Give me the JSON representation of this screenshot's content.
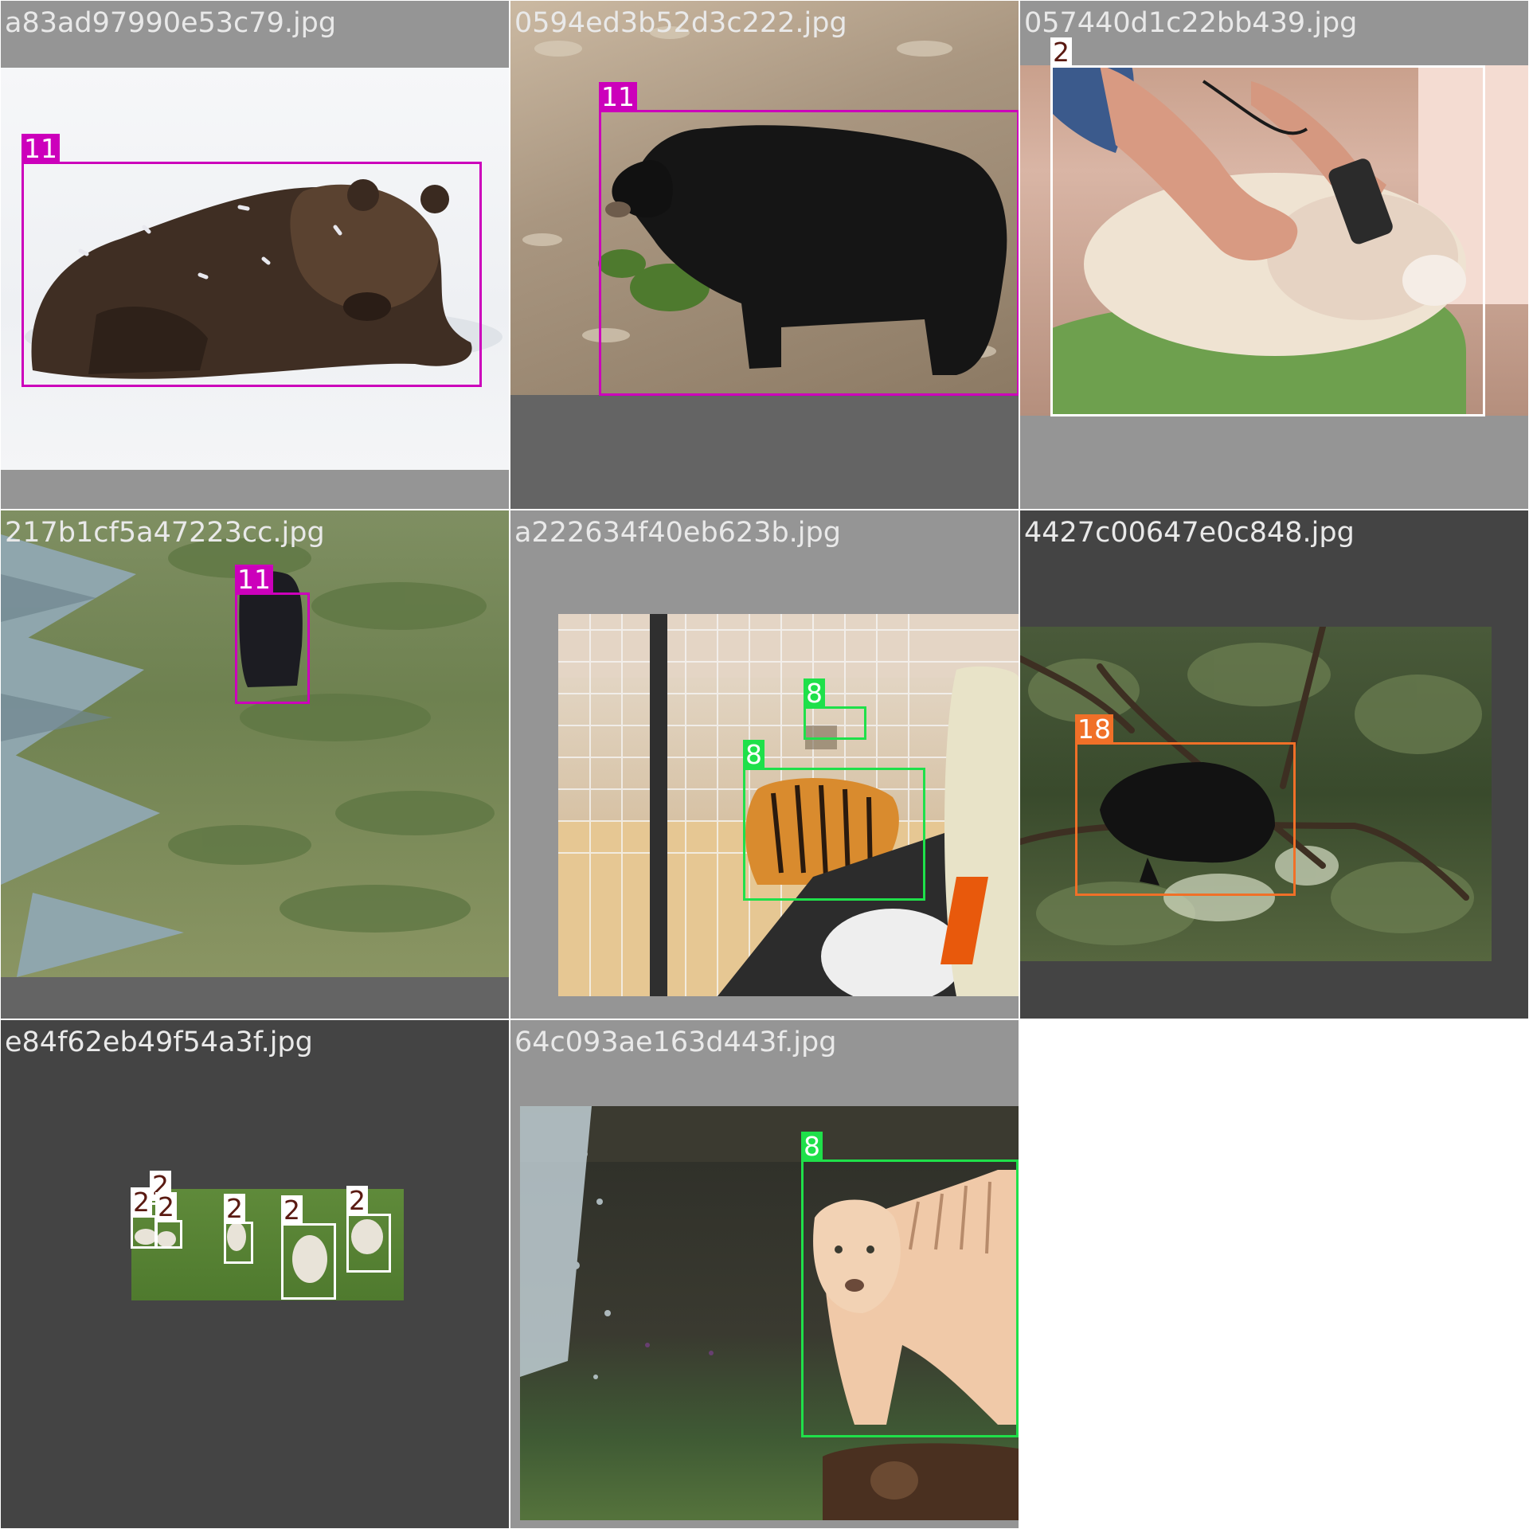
{
  "class_colors": {
    "2": "#ffffff",
    "8": "#1fe04a",
    "11": "#cc00bb",
    "18": "#f07028"
  },
  "tiles": [
    {
      "filename": "a83ad97990e53c79.jpg",
      "content": "brown bear lying in snow",
      "labels": [
        "11"
      ]
    },
    {
      "filename": "0594ed3b52d3c222.jpg",
      "content": "black bear walking on forest floor",
      "labels": [
        "11"
      ]
    },
    {
      "filename": "057440d1c22bb439.jpg",
      "content": "person shearing a sheep",
      "labels": [
        "2"
      ]
    },
    {
      "filename": "217b1cf5a47223cc.jpg",
      "content": "black bear on a grassy hillside",
      "labels": [
        "11"
      ]
    },
    {
      "filename": "a222634f40eb623b.jpg",
      "content": "tigers in a zoo cage",
      "labels": [
        "8",
        "8"
      ]
    },
    {
      "filename": "4427c00647e0c848.jpg",
      "content": "porcupine on a tree branch",
      "labels": [
        "18"
      ]
    },
    {
      "filename": "e84f62eb49f54a3f.jpg",
      "content": "sheep grazing on grass",
      "labels": [
        "2",
        "2",
        "2",
        "2",
        "2",
        "2"
      ]
    },
    {
      "filename": "64c093ae163d443f.jpg",
      "content": "golden tiger walking by a waterfall",
      "labels": [
        "8"
      ]
    }
  ]
}
